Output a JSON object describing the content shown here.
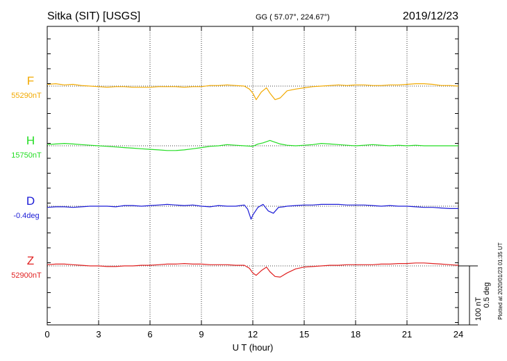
{
  "header": {
    "station": "Sitka (SIT)  [USGS]",
    "coords": "GG ( 57.07°, 224.67°)",
    "date": "2019/12/23"
  },
  "footer": {
    "plotted": "Plotted at 2020/01/23 01:35 UT"
  },
  "scale": {
    "nt": "100 nT",
    "deg": "0.5 deg"
  },
  "chart_data": {
    "type": "line",
    "xlabel": "U T (hour)",
    "xlim": [
      0,
      24
    ],
    "xticks": [
      0,
      3,
      6,
      9,
      12,
      15,
      18,
      21,
      24
    ],
    "grid": true,
    "series": [
      {
        "name": "F",
        "baseline_label": "55290nT",
        "color": "#f2a900",
        "x": [
          0,
          0.5,
          1,
          1.5,
          2,
          2.5,
          3,
          3.5,
          4,
          4.5,
          5,
          5.5,
          6,
          6.5,
          7,
          7.5,
          8,
          8.5,
          9,
          9.5,
          10,
          10.5,
          11,
          11.5,
          11.8,
          12,
          12.2,
          12.5,
          12.8,
          13,
          13.3,
          13.6,
          14,
          14.5,
          15,
          15.5,
          16,
          16.5,
          17,
          17.5,
          18,
          18.5,
          19,
          19.5,
          20,
          20.5,
          21,
          21.5,
          22,
          22.5,
          23,
          23.5,
          24
        ],
        "values": [
          3,
          4,
          2,
          3,
          1,
          0,
          -1,
          -2,
          -1,
          -1,
          -2,
          -2,
          -2,
          -1,
          -1,
          -1,
          -2,
          -1,
          -1,
          1,
          1,
          2,
          1,
          0,
          -5,
          -12,
          -23,
          -10,
          -3,
          -12,
          -23,
          -20,
          -8,
          -5,
          -3,
          -1,
          0,
          1,
          2,
          1,
          2,
          2,
          1,
          1,
          2,
          2,
          3,
          4,
          4,
          3,
          1,
          1,
          0
        ]
      },
      {
        "name": "H",
        "baseline_label": "15750nT",
        "color": "#22dd22",
        "x": [
          0,
          0.5,
          1,
          1.5,
          2,
          2.5,
          3,
          3.5,
          4,
          4.5,
          5,
          5.5,
          6,
          6.5,
          7,
          7.5,
          8,
          8.5,
          9,
          9.5,
          10,
          10.5,
          11,
          11.5,
          12,
          12.3,
          12.6,
          13,
          13.3,
          13.6,
          14,
          14.5,
          15,
          15.5,
          16,
          16.5,
          17,
          17.5,
          18,
          18.5,
          19,
          19.5,
          20,
          20.5,
          21,
          21.5,
          22,
          22.5,
          23,
          23.5,
          24
        ],
        "values": [
          2,
          3,
          4,
          3,
          2,
          1,
          0,
          -1,
          -2,
          -3,
          -4,
          -5,
          -6,
          -7,
          -8,
          -8,
          -7,
          -5,
          -3,
          -1,
          0,
          2,
          1,
          0,
          -1,
          3,
          5,
          9,
          6,
          3,
          1,
          0,
          1,
          2,
          4,
          3,
          2,
          1,
          0,
          1,
          2,
          1,
          0,
          1,
          0,
          1,
          0,
          0,
          0,
          0,
          0
        ]
      },
      {
        "name": "D",
        "baseline_label": "-0.4deg",
        "color": "#1a1ad6",
        "x": [
          0,
          0.5,
          1,
          1.5,
          2,
          2.5,
          3,
          3.5,
          4,
          4.5,
          5,
          5.5,
          6,
          6.5,
          7,
          7.5,
          8,
          8.5,
          9,
          9.5,
          10,
          10.5,
          11,
          11.5,
          11.7,
          11.9,
          12,
          12.3,
          12.6,
          12.9,
          13.2,
          13.5,
          13.8,
          14,
          14.5,
          15,
          15.5,
          16,
          16.5,
          17,
          17.5,
          18,
          18.5,
          19,
          19.5,
          20,
          20.5,
          21,
          21.5,
          22,
          22.5,
          23,
          23.5,
          24
        ],
        "values": [
          -2,
          -1,
          -1,
          -2,
          -1,
          0,
          0,
          0,
          -1,
          1,
          1,
          0,
          1,
          2,
          3,
          2,
          1,
          2,
          0,
          -1,
          1,
          0,
          0,
          2,
          -5,
          -22,
          -15,
          -2,
          3,
          -8,
          -12,
          -2,
          -1,
          0,
          1,
          2,
          2,
          3,
          3,
          3,
          2,
          2,
          2,
          1,
          0,
          1,
          0,
          0,
          -1,
          -2,
          -2,
          -3,
          -4,
          -4
        ]
      },
      {
        "name": "Z",
        "baseline_label": "52900nT",
        "color": "#e02020",
        "x": [
          0,
          0.5,
          1,
          1.5,
          2,
          2.5,
          3,
          3.5,
          4,
          4.5,
          5,
          5.5,
          6,
          6.5,
          7,
          7.5,
          8,
          8.5,
          9,
          9.5,
          10,
          10.5,
          11,
          11.5,
          11.8,
          12,
          12.2,
          12.5,
          12.8,
          13,
          13.3,
          13.6,
          14,
          14.5,
          15,
          15.5,
          16,
          16.5,
          17,
          17.5,
          18,
          18.5,
          19,
          19.5,
          20,
          20.5,
          21,
          21.5,
          22,
          22.5,
          23,
          23.5,
          24
        ],
        "values": [
          2,
          3,
          3,
          2,
          1,
          0,
          0,
          -1,
          -1,
          0,
          0,
          1,
          1,
          2,
          3,
          3,
          4,
          3,
          3,
          2,
          2,
          2,
          1,
          1,
          -4,
          -12,
          -16,
          -8,
          -2,
          -10,
          -18,
          -19,
          -12,
          -5,
          -2,
          -1,
          0,
          1,
          1,
          2,
          2,
          2,
          2,
          3,
          3,
          4,
          4,
          5,
          5,
          4,
          3,
          2,
          1
        ]
      }
    ]
  }
}
